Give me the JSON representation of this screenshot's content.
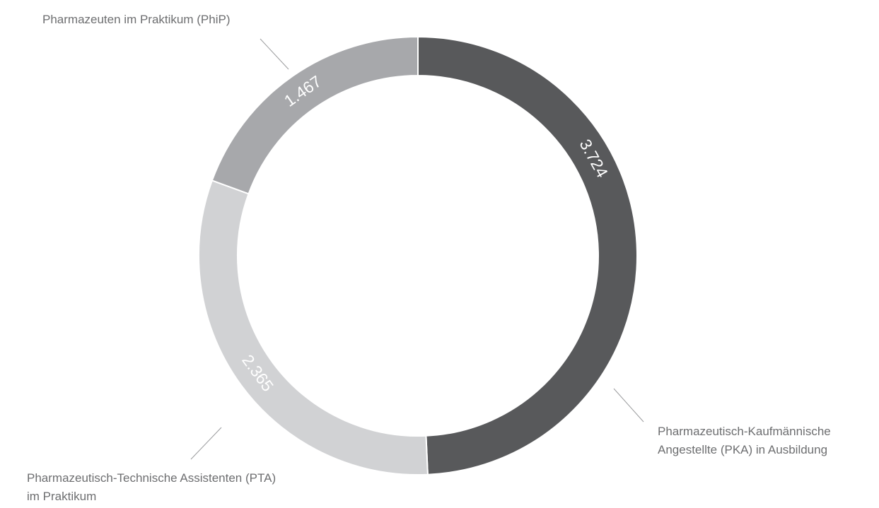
{
  "chart_data": {
    "type": "donut",
    "categories": [
      "Pharmazeutisch-Kaufmännische Angestellte (PKA) in Ausbildung",
      "Pharmazeutisch-Technische Assistenten (PTA) im Praktikum",
      "Pharmazeuten im Praktikum (PhiP)"
    ],
    "values": [
      3724,
      2365,
      1467
    ],
    "value_labels": [
      "3.724",
      "2.365",
      "1.467"
    ],
    "colors": [
      "#58595b",
      "#d1d2d4",
      "#a7a8ab"
    ]
  }
}
